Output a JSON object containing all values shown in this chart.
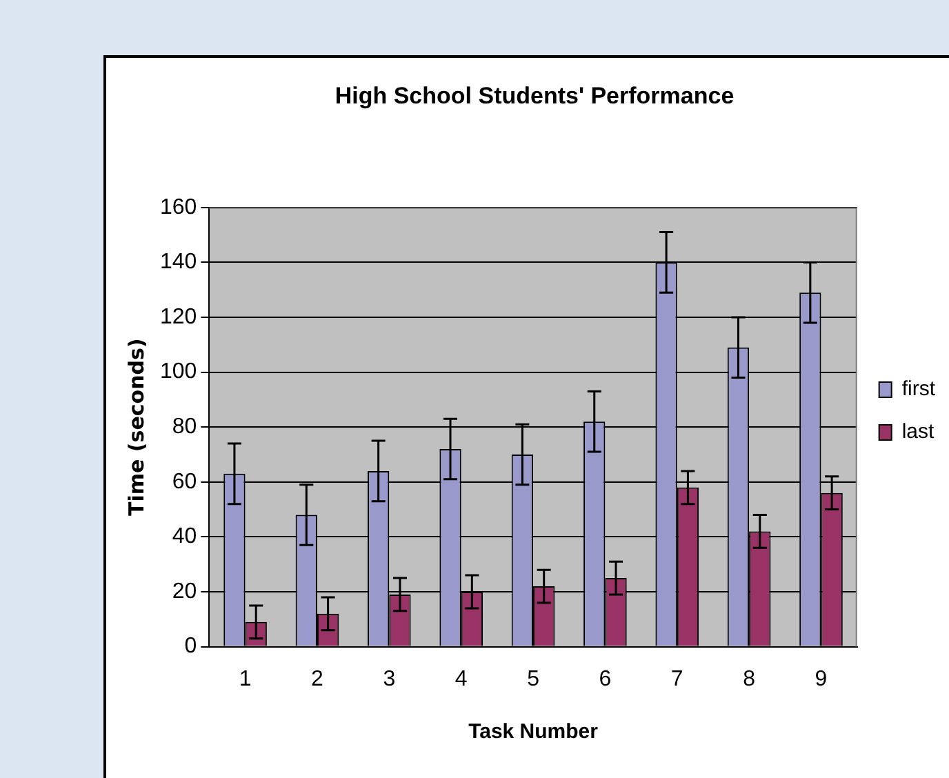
{
  "chart_data": {
    "type": "bar",
    "title": "High School Students' Performance",
    "xlabel": "Task Number",
    "ylabel": "Time (seconds)",
    "categories": [
      "1",
      "2",
      "3",
      "4",
      "5",
      "6",
      "7",
      "8",
      "9"
    ],
    "series": [
      {
        "name": "first",
        "color": "#9999cc",
        "values": [
          63,
          48,
          64,
          72,
          70,
          82,
          140,
          109,
          129
        ],
        "errors": [
          11,
          11,
          11,
          11,
          11,
          11,
          11,
          11,
          11
        ]
      },
      {
        "name": "last",
        "color": "#993366",
        "values": [
          9,
          12,
          19,
          20,
          22,
          25,
          58,
          42,
          56
        ],
        "errors": [
          6,
          6,
          6,
          6,
          6,
          6,
          6,
          6,
          6
        ]
      }
    ],
    "ylim": [
      0,
      160
    ],
    "yticks": [
      0,
      20,
      40,
      60,
      80,
      100,
      120,
      140,
      160
    ],
    "grid": "y",
    "legend": "right"
  }
}
